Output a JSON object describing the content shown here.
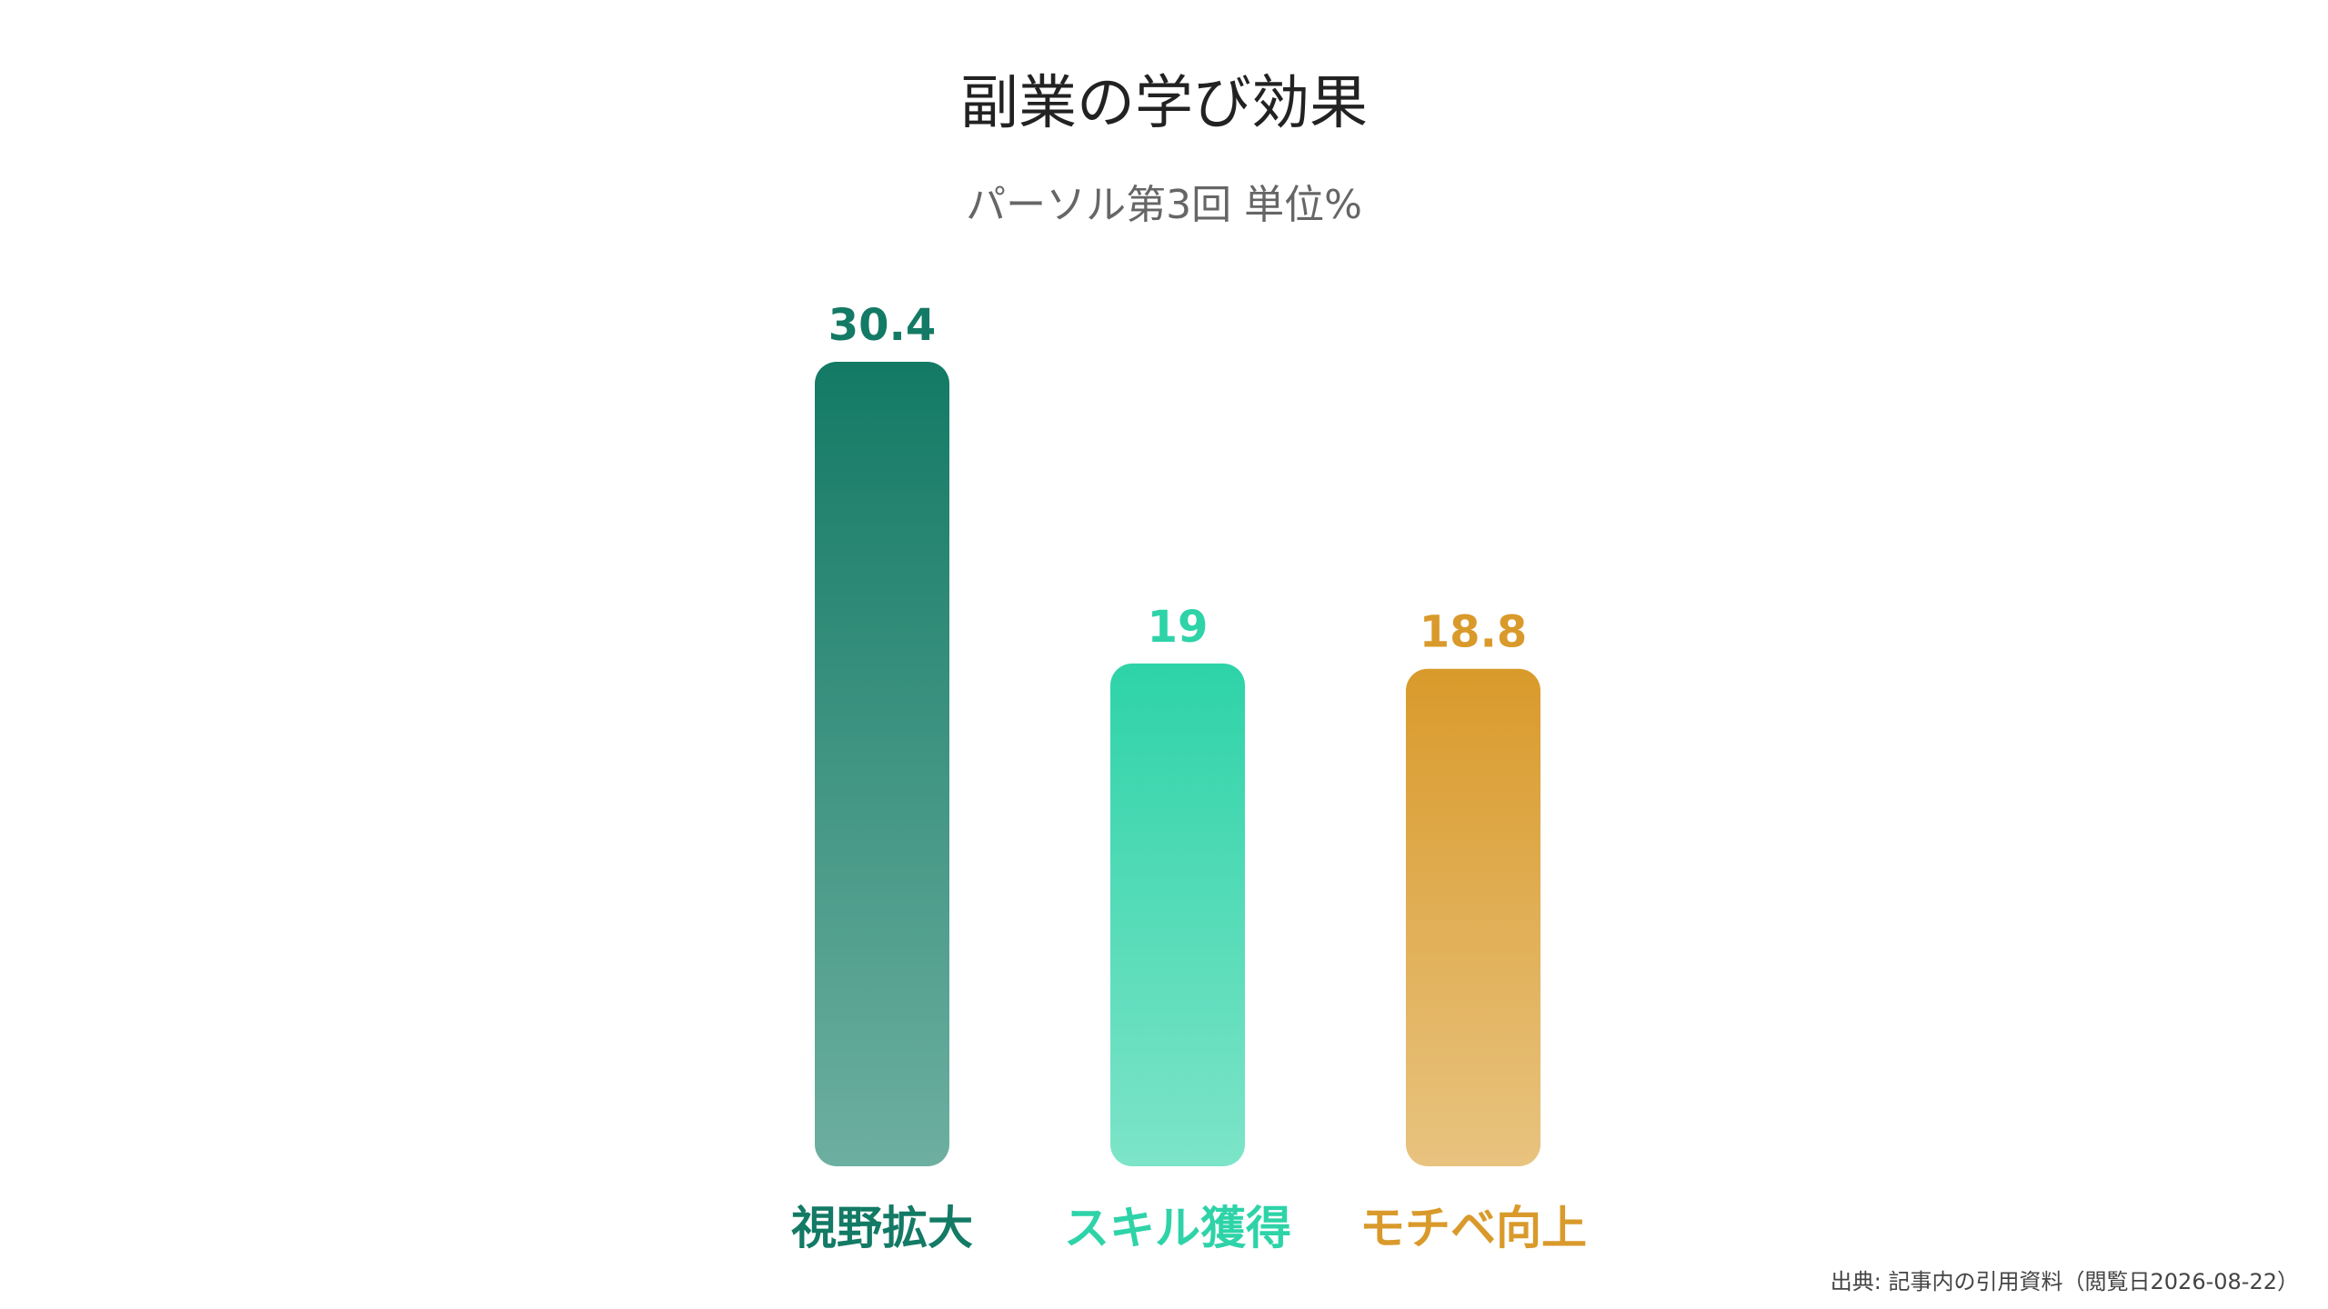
{
  "chart_data": {
    "type": "bar",
    "title": "副業の学び効果",
    "subtitle": "パーソル第3回 単位%",
    "categories": [
      "視野拡大",
      "スキル獲得",
      "モチベ向上"
    ],
    "values": [
      30.4,
      19,
      18.8
    ],
    "value_labels": [
      "30.4",
      "19",
      "18.8"
    ],
    "colors": [
      {
        "top": "#137a65",
        "bottom": "#6dafa0",
        "label": "#137a65"
      },
      {
        "top": "#2ed3a8",
        "bottom": "#7de4c8",
        "label": "#2ed3a8"
      },
      {
        "top": "#d99a2b",
        "bottom": "#e8c37f",
        "label": "#d99a2b"
      }
    ],
    "grid": false,
    "legend": "none",
    "ylim": [
      0,
      30.4
    ]
  },
  "footer": {
    "source": "出典: 記事内の引用資料（閲覧日2026-08-22）"
  }
}
